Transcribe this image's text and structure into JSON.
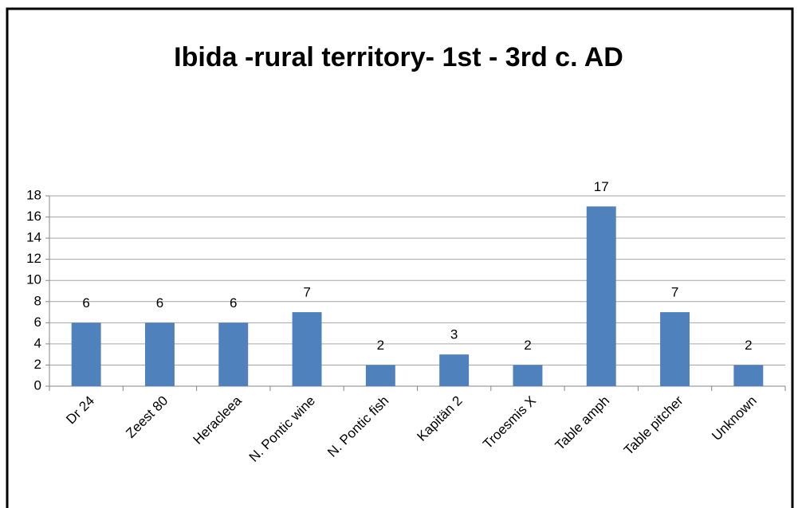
{
  "chart_data": {
    "type": "bar",
    "title": "Ibida -rural territory- 1st - 3rd c. AD",
    "categories": [
      "Dr 24",
      "Zeest 80",
      "Heracleea",
      "N. Pontic wine",
      "N. Pontic fish",
      "Kapitän 2",
      "Troesmis X",
      "Table amph",
      "Table pitcher",
      "Unknown"
    ],
    "values": [
      6,
      6,
      6,
      7,
      2,
      3,
      2,
      17,
      7,
      2
    ],
    "color": "#4f81bd",
    "ylim": [
      0,
      18
    ],
    "yticks": [
      0,
      2,
      4,
      6,
      8,
      10,
      12,
      14,
      16,
      18
    ],
    "grid": true
  }
}
